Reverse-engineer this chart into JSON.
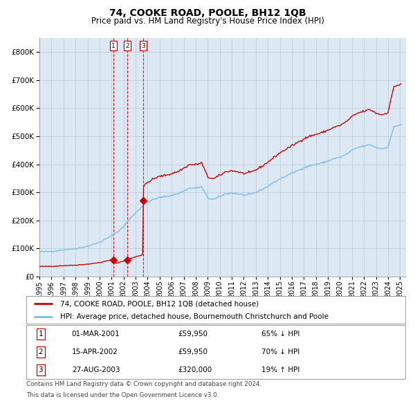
{
  "title": "74, COOKE ROAD, POOLE, BH12 1QB",
  "subtitle": "Price paid vs. HM Land Registry's House Price Index (HPI)",
  "background_color": "#dce9f5",
  "plot_bg_color": "#dce9f5",
  "legend_entries": [
    "74, COOKE ROAD, POOLE, BH12 1QB (detached house)",
    "HPI: Average price, detached house, Bournemouth Christchurch and Poole"
  ],
  "transactions": [
    {
      "num": 1,
      "date": "01-MAR-2001",
      "price": 59950,
      "pct": "65%",
      "dir": "↓",
      "x_year": 2001.17
    },
    {
      "num": 2,
      "date": "15-APR-2002",
      "price": 59950,
      "pct": "70%",
      "dir": "↓",
      "x_year": 2002.29
    },
    {
      "num": 3,
      "date": "27-AUG-2003",
      "price": 320000,
      "pct": "19%",
      "dir": "↑",
      "x_year": 2003.65
    }
  ],
  "footer": [
    "Contains HM Land Registry data © Crown copyright and database right 2024.",
    "This data is licensed under the Open Government Licence v3.0."
  ],
  "hpi_color": "#7bbfdf",
  "price_color": "#cc0000",
  "dashed_line_color": "#cc0000",
  "marker_color": "#cc0000",
  "ylim": [
    0,
    850000
  ],
  "xlim_start": 1995,
  "xlim_end": 2025.5,
  "hpi_anchors_x": [
    1995.0,
    1996.0,
    1997.0,
    1998.0,
    1999.0,
    2000.0,
    2001.0,
    2001.5,
    2002.0,
    2002.5,
    2003.0,
    2003.5,
    2004.0,
    2004.5,
    2005.0,
    2005.5,
    2006.0,
    2006.5,
    2007.0,
    2007.5,
    2008.0,
    2008.5,
    2009.0,
    2009.5,
    2010.0,
    2010.5,
    2011.0,
    2011.5,
    2012.0,
    2012.5,
    2013.0,
    2013.5,
    2014.0,
    2014.5,
    2015.0,
    2015.5,
    2016.0,
    2016.5,
    2017.0,
    2017.5,
    2018.0,
    2018.5,
    2019.0,
    2019.5,
    2020.0,
    2020.5,
    2021.0,
    2021.5,
    2022.0,
    2022.5,
    2023.0,
    2023.5,
    2024.0,
    2024.5,
    2025.0
  ],
  "hpi_anchors_y": [
    88000,
    90000,
    95000,
    100000,
    108000,
    122000,
    145000,
    160000,
    178000,
    205000,
    228000,
    248000,
    265000,
    275000,
    282000,
    285000,
    290000,
    295000,
    305000,
    315000,
    315000,
    320000,
    280000,
    275000,
    285000,
    295000,
    298000,
    295000,
    290000,
    292000,
    300000,
    310000,
    322000,
    335000,
    348000,
    358000,
    368000,
    378000,
    388000,
    395000,
    400000,
    405000,
    412000,
    420000,
    425000,
    435000,
    450000,
    460000,
    465000,
    470000,
    460000,
    455000,
    462000,
    535000,
    540000
  ]
}
